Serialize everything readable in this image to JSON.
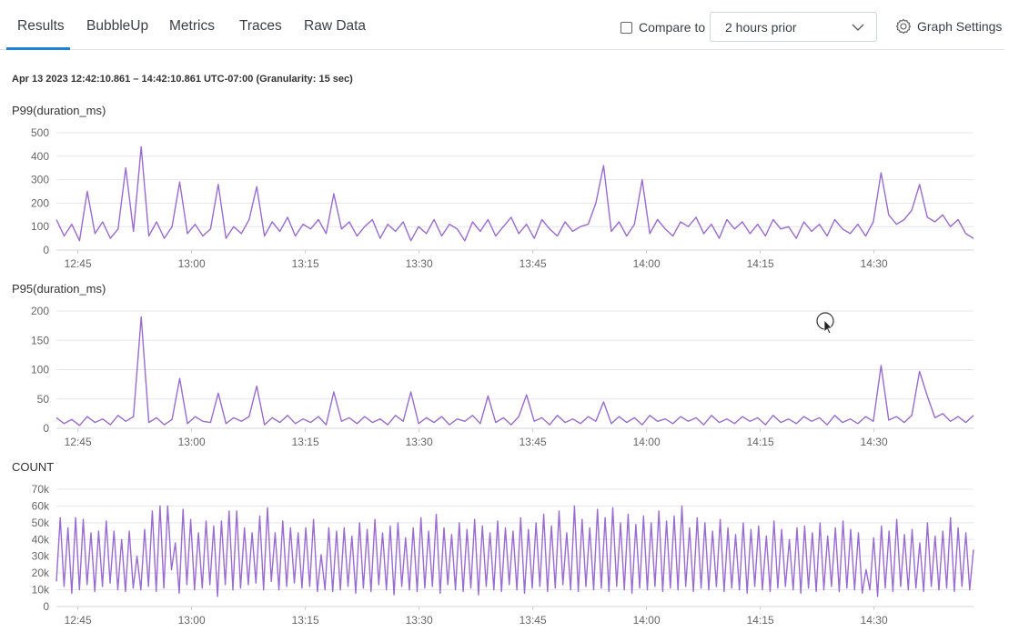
{
  "tabs": [
    {
      "label": "Results",
      "active": true
    },
    {
      "label": "BubbleUp"
    },
    {
      "label": "Metrics"
    },
    {
      "label": "Traces"
    },
    {
      "label": "Raw Data"
    }
  ],
  "toolbar": {
    "compare_label": "Compare to",
    "compare_checked": false,
    "compare_value": "2 hours prior",
    "graph_settings_label": "Graph Settings"
  },
  "time_range": "Apr 13 2023 12:42:10.861 – 14:42:10.861 UTC-07:00 (Granularity: 15 sec)",
  "colors": {
    "line": "#9a6bd0",
    "grid": "#e5e5ef",
    "accent": "#1f80d9"
  },
  "chart_data": [
    {
      "type": "line",
      "title": "P99(duration_ms)",
      "x_range": [
        "12:42:10",
        "14:42:10"
      ],
      "x_ticks": [
        "12:45",
        "13:00",
        "13:15",
        "13:30",
        "13:45",
        "14:00",
        "14:15",
        "14:30"
      ],
      "y_ticks": [
        "0",
        "100",
        "200",
        "300",
        "400",
        "500"
      ],
      "ylim": [
        0,
        500
      ],
      "grid": true,
      "values": [
        130,
        60,
        110,
        40,
        250,
        70,
        120,
        50,
        90,
        350,
        80,
        440,
        60,
        120,
        50,
        100,
        290,
        70,
        110,
        60,
        90,
        280,
        50,
        100,
        70,
        130,
        270,
        60,
        120,
        80,
        140,
        60,
        110,
        90,
        130,
        70,
        240,
        90,
        120,
        60,
        100,
        130,
        50,
        110,
        80,
        120,
        40,
        100,
        70,
        130,
        60,
        110,
        90,
        40,
        120,
        80,
        130,
        60,
        100,
        140,
        70,
        110,
        50,
        130,
        90,
        60,
        120,
        80,
        100,
        110,
        200,
        360,
        80,
        120,
        60,
        110,
        300,
        70,
        130,
        90,
        60,
        120,
        100,
        140,
        70,
        110,
        50,
        130,
        90,
        120,
        70,
        110,
        60,
        130,
        90,
        100,
        50,
        120,
        80,
        110,
        60,
        130,
        90,
        70,
        110,
        60,
        120,
        330,
        150,
        110,
        130,
        170,
        280,
        140,
        120,
        150,
        100,
        130,
        70,
        50
      ]
    },
    {
      "type": "line",
      "title": "P95(duration_ms)",
      "x_range": [
        "12:42:10",
        "14:42:10"
      ],
      "x_ticks": [
        "12:45",
        "13:00",
        "13:15",
        "13:30",
        "13:45",
        "14:00",
        "14:15",
        "14:30"
      ],
      "y_ticks": [
        "0",
        "50",
        "100",
        "150",
        "200"
      ],
      "ylim": [
        0,
        200
      ],
      "grid": true,
      "values": [
        18,
        8,
        15,
        5,
        20,
        10,
        16,
        6,
        22,
        12,
        20,
        190,
        10,
        18,
        6,
        15,
        85,
        8,
        20,
        12,
        10,
        60,
        8,
        18,
        12,
        20,
        72,
        6,
        18,
        10,
        22,
        8,
        16,
        10,
        20,
        6,
        62,
        12,
        18,
        8,
        20,
        10,
        16,
        6,
        22,
        12,
        62,
        8,
        18,
        10,
        20,
        6,
        16,
        12,
        22,
        8,
        55,
        10,
        18,
        6,
        20,
        57,
        12,
        18,
        6,
        22,
        10,
        16,
        8,
        20,
        12,
        45,
        8,
        20,
        10,
        18,
        6,
        22,
        12,
        16,
        8,
        20,
        12,
        18,
        6,
        22,
        10,
        16,
        8,
        20,
        12,
        18,
        6,
        22,
        10,
        16,
        8,
        20,
        12,
        18,
        6,
        22,
        10,
        16,
        8,
        20,
        12,
        107,
        14,
        20,
        10,
        22,
        97,
        55,
        18,
        25,
        12,
        20,
        10,
        22
      ]
    },
    {
      "type": "line",
      "title": "COUNT",
      "x_range": [
        "12:42:10",
        "14:42:10"
      ],
      "x_ticks": [
        "12:45",
        "13:00",
        "13:15",
        "13:30",
        "13:45",
        "14:00",
        "14:15",
        "14:30"
      ],
      "y_ticks": [
        "0",
        "10k",
        "20k",
        "30k",
        "40k",
        "50k",
        "60k",
        "70k"
      ],
      "ylim": [
        0,
        70000
      ],
      "grid": true,
      "values": [
        15000,
        53000,
        12000,
        47000,
        8000,
        53000,
        10000,
        52000,
        13000,
        44000,
        9000,
        45000,
        12000,
        51000,
        14000,
        45000,
        10000,
        40000,
        9000,
        45000,
        11000,
        30000,
        10000,
        46000,
        12000,
        57000,
        9000,
        60000,
        11000,
        60000,
        22000,
        38000,
        8000,
        58000,
        13000,
        52000,
        10000,
        44000,
        11000,
        51000,
        13000,
        48000,
        6000,
        51000,
        13000,
        57000,
        10000,
        57000,
        11000,
        47000,
        13000,
        44000,
        14000,
        54000,
        10000,
        59000,
        15000,
        44000,
        10000,
        51000,
        12000,
        47000,
        14000,
        44000,
        11000,
        47000,
        12000,
        52000,
        9000,
        31000,
        10000,
        47000,
        9000,
        45000,
        10000,
        47000,
        12000,
        42000,
        8000,
        50000,
        11000,
        46000,
        9000,
        52000,
        13000,
        44000,
        10000,
        48000,
        7000,
        50000,
        12000,
        41000,
        10000,
        47000,
        9000,
        53000,
        11000,
        45000,
        12000,
        55000,
        8000,
        47000,
        13000,
        43000,
        10000,
        50000,
        9000,
        46000,
        11000,
        52000,
        7000,
        48000,
        12000,
        44000,
        10000,
        51000,
        9000,
        47000,
        13000,
        45000,
        10000,
        53000,
        8000,
        46000,
        11000,
        50000,
        12000,
        55000,
        9000,
        48000,
        11000,
        57000,
        13000,
        44000,
        10000,
        60000,
        9000,
        52000,
        12000,
        47000,
        10000,
        58000,
        11000,
        53000,
        9000,
        59000,
        12000,
        50000,
        10000,
        55000,
        8000,
        49000,
        11000,
        54000,
        10000,
        50000,
        12000,
        57000,
        9000,
        51000,
        11000,
        54000,
        10000,
        60000,
        12000,
        47000,
        9000,
        53000,
        11000,
        50000,
        10000,
        45000,
        12000,
        52000,
        9000,
        47000,
        11000,
        43000,
        10000,
        50000,
        8000,
        46000,
        12000,
        48000,
        10000,
        42000,
        9000,
        51000,
        11000,
        46000,
        12000,
        40000,
        10000,
        47000,
        8000,
        48000,
        11000,
        44000,
        9000,
        50000,
        10000,
        42000,
        12000,
        47000,
        9000,
        51000,
        11000,
        46000,
        10000,
        44000,
        8000,
        22000,
        10000,
        41000,
        6000,
        48000,
        11000,
        45000,
        9000,
        52000,
        12000,
        43000,
        10000,
        46000,
        11000,
        38000,
        9000,
        50000,
        12000,
        42000,
        10000,
        45000,
        11000,
        53000,
        9000,
        47000,
        12000,
        44000,
        10000,
        34000
      ]
    }
  ]
}
